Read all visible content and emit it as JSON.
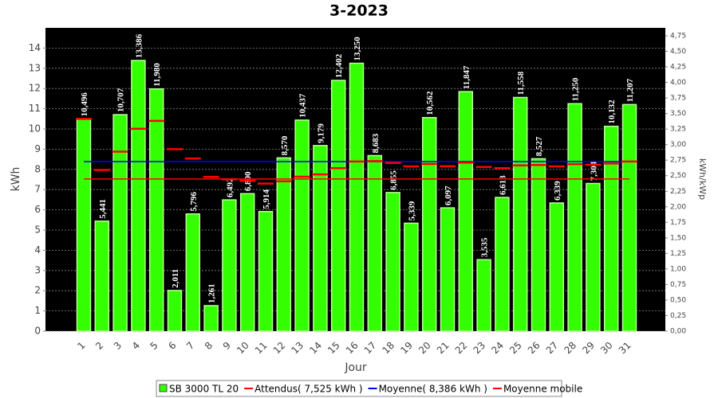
{
  "chart_data": {
    "type": "bar",
    "title": "3-2023",
    "x_label": "Jour",
    "y_label": "kWh",
    "y2_label": "kWh/kWp",
    "categories": [
      "1",
      "2",
      "3",
      "4",
      "5",
      "6",
      "7",
      "8",
      "9",
      "10",
      "11",
      "12",
      "13",
      "14",
      "15",
      "16",
      "17",
      "18",
      "19",
      "20",
      "21",
      "22",
      "23",
      "24",
      "25",
      "26",
      "27",
      "28",
      "29",
      "30",
      "31"
    ],
    "series": [
      {
        "name": "SB 3000 TL 20",
        "color": "#33ff00",
        "style": "bar",
        "values": [
          10.496,
          5.441,
          10.707,
          13.386,
          11.98,
          2.011,
          5.796,
          1.261,
          6.492,
          6.8,
          5.914,
          8.57,
          10.437,
          9.179,
          12.402,
          13.25,
          8.683,
          6.855,
          5.339,
          10.562,
          6.097,
          11.847,
          3.535,
          6.613,
          11.558,
          8.527,
          6.339,
          11.25,
          7.304,
          10.132,
          11.207
        ],
        "value_labels": [
          "10,496",
          "5,441",
          "10,707",
          "13,386",
          "11,980",
          "2,011",
          "5,796",
          "1,261",
          "6,492",
          "6,800",
          "5,914",
          "8,570",
          "10,437",
          "9,179",
          "12,402",
          "13,250",
          "8,683",
          "6,855",
          "5,339",
          "10,562",
          "6,097",
          "11,847",
          "3,535",
          "6,613",
          "11,558",
          "8,527",
          "6,339",
          "11,250",
          "7,304",
          "10,132",
          "11,207"
        ]
      },
      {
        "name": "Attendus( 7,525 kWh )",
        "color": "#ff0000",
        "style": "line",
        "values": [
          7.525,
          7.525,
          7.525,
          7.525,
          7.525,
          7.525,
          7.525,
          7.525,
          7.525,
          7.525,
          7.525,
          7.525,
          7.525,
          7.525,
          7.525,
          7.525,
          7.525,
          7.525,
          7.525,
          7.525,
          7.525,
          7.525,
          7.525,
          7.525,
          7.525,
          7.525,
          7.525,
          7.525,
          7.525,
          7.525,
          7.525
        ]
      },
      {
        "name": "Moyenne( 8,386 kWh )",
        "color": "#0000ff",
        "style": "line",
        "values": [
          8.386,
          8.386,
          8.386,
          8.386,
          8.386,
          8.386,
          8.386,
          8.386,
          8.386,
          8.386,
          8.386,
          8.386,
          8.386,
          8.386,
          8.386,
          8.386,
          8.386,
          8.386,
          8.386,
          8.386,
          8.386,
          8.386,
          8.386,
          8.386,
          8.386,
          8.386,
          8.386,
          8.386,
          8.386,
          8.386,
          8.386
        ]
      },
      {
        "name": "Moyenne mobile",
        "color": "#ff0000",
        "style": "dash",
        "values": [
          10.496,
          7.97,
          8.88,
          10.01,
          10.4,
          9.0,
          8.54,
          7.63,
          7.51,
          7.44,
          7.3,
          7.41,
          7.64,
          7.75,
          8.06,
          8.39,
          8.41,
          8.32,
          8.15,
          8.27,
          8.16,
          8.33,
          8.12,
          8.06,
          8.2,
          8.22,
          8.15,
          8.26,
          8.23,
          8.29,
          8.39
        ]
      }
    ],
    "ylim": [
      0,
      15
    ],
    "yticks": [
      0,
      1,
      2,
      3,
      4,
      5,
      6,
      7,
      8,
      9,
      10,
      11,
      12,
      13,
      14
    ],
    "y2lim": [
      0,
      4.878
    ],
    "y2ticks": [
      {
        "value": 0,
        "label": "0,00"
      },
      {
        "value": 0.25,
        "label": "0,25"
      },
      {
        "value": 0.5,
        "label": "0,50"
      },
      {
        "value": 0.75,
        "label": "0,75"
      },
      {
        "value": 1,
        "label": "1,00"
      },
      {
        "value": 1.25,
        "label": "1,25"
      },
      {
        "value": 1.5,
        "label": "1,50"
      },
      {
        "value": 1.75,
        "label": "1,75"
      },
      {
        "value": 2,
        "label": "2,00"
      },
      {
        "value": 2.25,
        "label": "2,25"
      },
      {
        "value": 2.5,
        "label": "2,50"
      },
      {
        "value": 2.75,
        "label": "2,75"
      },
      {
        "value": 3,
        "label": "3,00"
      },
      {
        "value": 3.25,
        "label": "3,25"
      },
      {
        "value": 3.5,
        "label": "3,50"
      },
      {
        "value": 3.75,
        "label": "3,75"
      },
      {
        "value": 4,
        "label": "4,00"
      },
      {
        "value": 4.25,
        "label": "4,25"
      },
      {
        "value": 4.5,
        "label": "4,50"
      },
      {
        "value": 4.75,
        "label": "4,75"
      }
    ],
    "grid": true
  }
}
